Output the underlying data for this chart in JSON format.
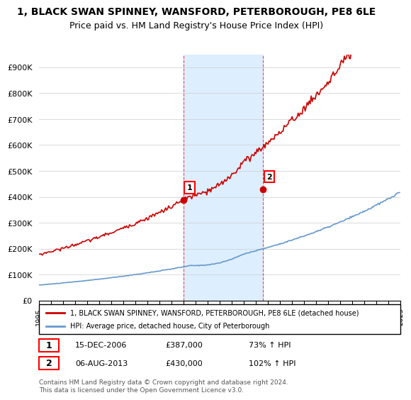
{
  "title_line1": "1, BLACK SWAN SPINNEY, WANSFORD, PETERBOROUGH, PE8 6LE",
  "title_line2": "Price paid vs. HM Land Registry's House Price Index (HPI)",
  "ylabel": "",
  "ylim": [
    0,
    950000
  ],
  "yticks": [
    0,
    100000,
    200000,
    300000,
    400000,
    500000,
    600000,
    700000,
    800000,
    900000
  ],
  "ytick_labels": [
    "£0",
    "£100K",
    "£200K",
    "£300K",
    "£400K",
    "£500K",
    "£600K",
    "£700K",
    "£800K",
    "£900K"
  ],
  "sale1_date_num": 2006.96,
  "sale1_price": 387000,
  "sale1_label": "1",
  "sale1_date_str": "15-DEC-2006",
  "sale1_hpi": "73% ↑ HPI",
  "sale2_date_num": 2013.59,
  "sale2_price": 430000,
  "sale2_label": "2",
  "sale2_date_str": "06-AUG-2013",
  "sale2_hpi": "102% ↑ HPI",
  "red_line_color": "#cc0000",
  "blue_line_color": "#6699cc",
  "shade_color": "#ddeeff",
  "legend_label_red": "1, BLACK SWAN SPINNEY, WANSFORD, PETERBOROUGH, PE8 6LE (detached house)",
  "legend_label_blue": "HPI: Average price, detached house, City of Peterborough",
  "footer_text": "Contains HM Land Registry data © Crown copyright and database right 2024.\nThis data is licensed under the Open Government Licence v3.0.",
  "background_color": "#ffffff",
  "grid_color": "#cccccc"
}
